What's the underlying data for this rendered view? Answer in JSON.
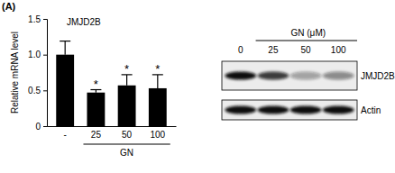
{
  "panel_label": "(A)",
  "chart_data": {
    "type": "bar",
    "title": "JMJD2B",
    "ylabel": "Relative mRNA level",
    "xlabel": "GN",
    "categories": [
      "-",
      "25",
      "50",
      "100"
    ],
    "values": [
      1.0,
      0.47,
      0.57,
      0.53
    ],
    "errors": [
      0.19,
      0.04,
      0.15,
      0.19
    ],
    "color": "#000000",
    "ylim": [
      0,
      1.5
    ],
    "yticks": [
      0,
      0.5,
      {
        "value": 1,
        "label": "1.0"
      },
      1.5
    ],
    "annotations": [
      {
        "text": "*",
        "category": "25"
      },
      {
        "text": "*",
        "category": "50"
      },
      {
        "text": "*",
        "category": "100"
      }
    ]
  },
  "blot": {
    "title": "GN (μM)",
    "lanes": [
      "0",
      "25",
      "50",
      "100"
    ],
    "rows": [
      {
        "label": "JMJD2B",
        "intensity": [
          1.0,
          0.8,
          0.35,
          0.45
        ]
      },
      {
        "label": "Actin",
        "intensity": [
          1.0,
          1.0,
          1.0,
          1.0
        ]
      }
    ]
  }
}
